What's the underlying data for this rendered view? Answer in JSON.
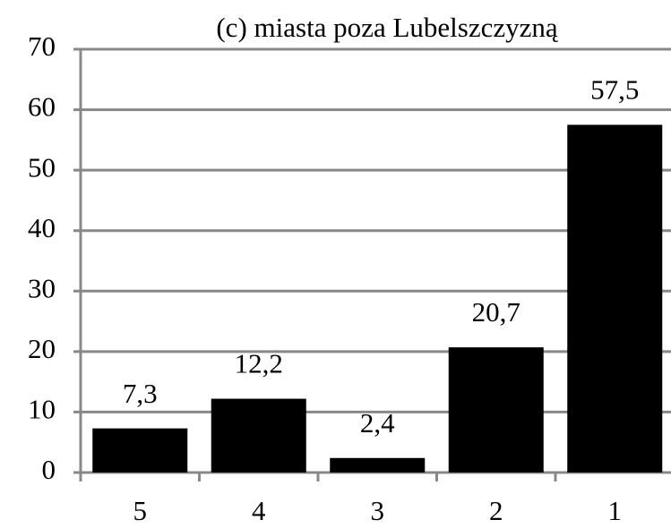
{
  "chart_data": {
    "type": "bar",
    "title": "(c) miasta poza Lubelszczyzną",
    "categories": [
      "5",
      "4",
      "3",
      "2",
      "1"
    ],
    "values": [
      7.3,
      12.2,
      2.4,
      20.7,
      57.5
    ],
    "value_labels": [
      "7,3",
      "12,2",
      "2,4",
      "20,7",
      "57,5"
    ],
    "color": "#000000",
    "ylim": [
      0,
      70
    ],
    "yticks": [
      0,
      10,
      20,
      30,
      40,
      50,
      60,
      70
    ],
    "grid": true
  }
}
